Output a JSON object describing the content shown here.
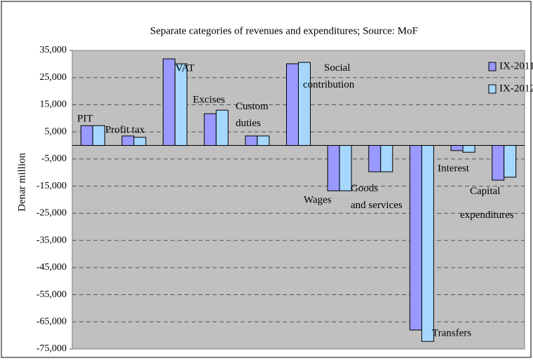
{
  "chart_data": {
    "type": "bar",
    "title": "Separate categories of revenues and expenditures; Source: MoF",
    "y_label": "Denar million",
    "categories": [
      "PIT",
      "Profit tax",
      "VAT",
      "Excises",
      "Custom duties",
      "Social contribution",
      "Wages",
      "Goods and services",
      "Transfers",
      "Interest",
      "Capital expenditures"
    ],
    "series": [
      {
        "name": "IX-2011",
        "color": "#9999ff",
        "values": [
          7300,
          3500,
          31900,
          11700,
          3500,
          30100,
          -16700,
          -9700,
          -68000,
          -1900,
          -12800
        ]
      },
      {
        "name": "IX-2012",
        "color": "#a6d8ff",
        "values": [
          7300,
          3000,
          30100,
          13000,
          3500,
          30600,
          -16700,
          -9700,
          -72200,
          -2500,
          -11700
        ]
      }
    ],
    "ylim": [
      -75000,
      35000
    ],
    "yticks": [
      {
        "value": -75000,
        "label": "-75,000"
      },
      {
        "value": -65000,
        "label": "-65,000"
      },
      {
        "value": -55000,
        "label": "-55,000"
      },
      {
        "value": -45000,
        "label": "-45,000"
      },
      {
        "value": -35000,
        "label": "-35,000"
      },
      {
        "value": -25000,
        "label": "-25,000"
      },
      {
        "value": -15000,
        "label": "-15,000"
      },
      {
        "value": -5000,
        "label": "-5,000"
      },
      {
        "value": 5000,
        "label": "5,000"
      },
      {
        "value": 15000,
        "label": "15,000"
      },
      {
        "value": 25000,
        "label": "25,000"
      },
      {
        "value": 35000,
        "label": "35,000"
      }
    ],
    "grid": true,
    "legend": "top-right"
  }
}
